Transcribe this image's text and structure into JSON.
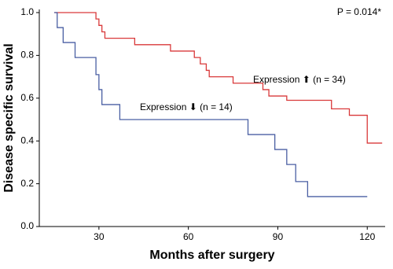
{
  "chart_data": {
    "type": "step",
    "xlabel": "Months after surgery",
    "ylabel": "Disease specific survival",
    "annotation": "P = 0.014*",
    "xlim": [
      10,
      126
    ],
    "ylim": [
      0,
      1
    ],
    "xticks": [
      30,
      60,
      90,
      120
    ],
    "yticks": [
      {
        "value": 0,
        "label": "0.0"
      },
      0.2,
      0.4,
      0.6,
      0.8,
      {
        "value": 1,
        "label": "1.0"
      }
    ],
    "series": [
      {
        "name": "Expression ⬆ (n = 34)",
        "color": "#d9393a",
        "x": [
          15,
          29,
          30,
          31,
          32,
          42,
          54,
          62,
          64,
          66,
          67,
          75,
          85,
          87,
          93,
          108,
          114,
          120,
          125
        ],
        "values": [
          1.0,
          0.97,
          0.94,
          0.91,
          0.88,
          0.85,
          0.82,
          0.79,
          0.76,
          0.73,
          0.7,
          0.67,
          0.64,
          0.61,
          0.59,
          0.55,
          0.52,
          0.39,
          0.39
        ]
      },
      {
        "name": "Expression ⬇ (n = 14)",
        "color": "#4a5fa3",
        "x": [
          15,
          16,
          18,
          22,
          29,
          30,
          31,
          37,
          80,
          89,
          93,
          96,
          100,
          120
        ],
        "values": [
          1.0,
          0.93,
          0.86,
          0.79,
          0.71,
          0.64,
          0.57,
          0.5,
          0.43,
          0.36,
          0.29,
          0.21,
          0.14,
          0.14
        ]
      }
    ]
  }
}
